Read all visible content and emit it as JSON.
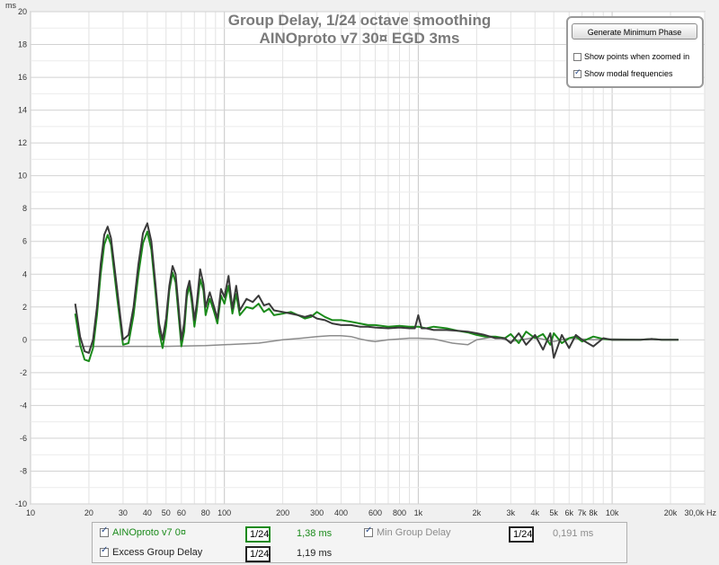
{
  "chart_data": {
    "type": "line",
    "title": "Group Delay, 1/24 octave smoothing",
    "subtitle": "AINOproto v7 30¤ EGD 3ms",
    "ylabel": "ms",
    "xlabel": "Hz",
    "xscale": "log",
    "xlim": [
      10,
      30000
    ],
    "ylim": [
      -10,
      20
    ],
    "yticks": [
      "-10",
      "-8",
      "-6",
      "-4",
      "-2",
      "0",
      "2",
      "4",
      "6",
      "8",
      "10",
      "12",
      "14",
      "16",
      "18",
      "20"
    ],
    "xticks": [
      {
        "v": 10,
        "label": "10"
      },
      {
        "v": 20,
        "label": "20"
      },
      {
        "v": 30,
        "label": "30"
      },
      {
        "v": 40,
        "label": "40"
      },
      {
        "v": 50,
        "label": "50"
      },
      {
        "v": 60,
        "label": "60"
      },
      {
        "v": 80,
        "label": "80"
      },
      {
        "v": 100,
        "label": "100"
      },
      {
        "v": 200,
        "label": "200"
      },
      {
        "v": 300,
        "label": "300"
      },
      {
        "v": 400,
        "label": "400"
      },
      {
        "v": 600,
        "label": "600"
      },
      {
        "v": 800,
        "label": "800"
      },
      {
        "v": 1000,
        "label": "1k"
      },
      {
        "v": 2000,
        "label": "2k"
      },
      {
        "v": 3000,
        "label": "3k"
      },
      {
        "v": 4000,
        "label": "4k"
      },
      {
        "v": 5000,
        "label": "5k"
      },
      {
        "v": 6000,
        "label": "6k"
      },
      {
        "v": 7000,
        "label": "7k"
      },
      {
        "v": 8000,
        "label": "8k"
      },
      {
        "v": 10000,
        "label": "10k"
      },
      {
        "v": 20000,
        "label": "20k"
      },
      {
        "v": 30000,
        "label": "30,0k Hz"
      }
    ],
    "grid": true,
    "series": [
      {
        "name": "AINOproto v7 0¤",
        "color": "#1a8a1a",
        "x": [
          17,
          18,
          19,
          20,
          21,
          22,
          23,
          24,
          25,
          26,
          28,
          30,
          32,
          34,
          36,
          38,
          40,
          42,
          44,
          46,
          48,
          50,
          52,
          54,
          56,
          58,
          60,
          62,
          64,
          66,
          68,
          70,
          72,
          75,
          78,
          80,
          84,
          88,
          92,
          96,
          100,
          105,
          110,
          115,
          120,
          130,
          140,
          150,
          160,
          170,
          180,
          200,
          220,
          240,
          260,
          280,
          300,
          330,
          360,
          400,
          450,
          500,
          550,
          600,
          700,
          800,
          900,
          1000,
          1100,
          1200,
          1400,
          1600,
          1800,
          2000,
          2200,
          2500,
          2800,
          3000,
          3300,
          3600,
          4000,
          4400,
          4800,
          5000,
          5500,
          6000,
          6500,
          7000,
          8000,
          9000,
          10000,
          12000,
          14000,
          16000,
          18000,
          20000,
          22000
        ],
        "y": [
          1.6,
          -0.3,
          -1.2,
          -1.3,
          -0.5,
          1.5,
          4.0,
          5.8,
          6.4,
          5.8,
          2.5,
          -0.3,
          -0.2,
          1.5,
          4.0,
          5.9,
          6.6,
          5.5,
          3.0,
          0.5,
          -0.5,
          0.8,
          3.0,
          4.1,
          3.5,
          1.5,
          -0.4,
          0.5,
          2.6,
          3.3,
          2.2,
          0.8,
          1.8,
          3.7,
          3.0,
          1.5,
          2.5,
          1.8,
          1.0,
          2.7,
          2.2,
          3.3,
          1.6,
          2.8,
          1.5,
          2.0,
          1.9,
          2.2,
          1.7,
          1.9,
          1.5,
          1.6,
          1.7,
          1.5,
          1.3,
          1.4,
          1.7,
          1.4,
          1.2,
          1.2,
          1.1,
          1.0,
          0.9,
          0.9,
          0.8,
          0.85,
          0.8,
          0.8,
          0.7,
          0.8,
          0.7,
          0.55,
          0.45,
          0.3,
          0.2,
          0.2,
          0.1,
          0.35,
          -0.2,
          0.5,
          0.1,
          0.35,
          -0.3,
          0.4,
          -0.2,
          0.1,
          0.2,
          -0.1,
          0.2,
          0.05,
          0.0,
          0.0,
          0.0,
          0.05,
          0.0,
          0.0,
          0.0
        ],
        "width": 2
      },
      {
        "name": "Min Group Delay",
        "color": "#8c8c8c",
        "x": [
          17,
          20,
          30,
          50,
          80,
          100,
          150,
          200,
          250,
          300,
          350,
          400,
          450,
          500,
          550,
          600,
          700,
          800,
          900,
          1000,
          1200,
          1500,
          1800,
          2000,
          2500,
          3000,
          4000,
          5000,
          6000,
          8000,
          10000,
          15000,
          22000
        ],
        "y": [
          -0.4,
          -0.4,
          -0.4,
          -0.4,
          -0.35,
          -0.3,
          -0.2,
          0.0,
          0.1,
          0.2,
          0.25,
          0.25,
          0.2,
          0.05,
          -0.05,
          -0.1,
          0.0,
          0.05,
          0.1,
          0.1,
          0.05,
          -0.2,
          -0.3,
          0.0,
          0.2,
          -0.1,
          0.15,
          -0.1,
          0.1,
          0.0,
          0.05,
          0.0,
          0.0
        ],
        "width": 1.5
      },
      {
        "name": "Excess Group Delay",
        "color": "#3a3a3a",
        "x": [
          17,
          18,
          19,
          20,
          21,
          22,
          23,
          24,
          25,
          26,
          28,
          30,
          32,
          34,
          36,
          38,
          40,
          42,
          44,
          46,
          48,
          50,
          52,
          54,
          56,
          58,
          60,
          62,
          64,
          66,
          68,
          70,
          72,
          75,
          78,
          80,
          84,
          88,
          92,
          96,
          100,
          105,
          110,
          115,
          120,
          130,
          140,
          150,
          160,
          170,
          180,
          200,
          220,
          240,
          260,
          280,
          300,
          330,
          360,
          400,
          450,
          500,
          550,
          600,
          700,
          800,
          900,
          960,
          1000,
          1040,
          1100,
          1200,
          1400,
          1600,
          1800,
          2000,
          2200,
          2500,
          2800,
          3000,
          3300,
          3600,
          4000,
          4400,
          4800,
          5000,
          5500,
          6000,
          6500,
          7000,
          8000,
          9000,
          10000,
          12000,
          14000,
          16000,
          18000,
          20000,
          22000
        ],
        "y": [
          2.2,
          0.2,
          -0.7,
          -0.8,
          0.0,
          2.0,
          4.6,
          6.4,
          6.9,
          6.2,
          3.0,
          0.0,
          0.3,
          2.0,
          4.6,
          6.5,
          7.1,
          6.0,
          3.5,
          1.0,
          0.0,
          1.3,
          3.3,
          4.5,
          4.0,
          2.0,
          0.0,
          1.0,
          3.0,
          3.6,
          2.6,
          1.2,
          2.2,
          4.3,
          3.4,
          2.0,
          2.9,
          2.1,
          1.3,
          3.1,
          2.6,
          3.9,
          1.9,
          3.3,
          1.8,
          2.5,
          2.3,
          2.7,
          2.1,
          2.2,
          1.8,
          1.7,
          1.6,
          1.5,
          1.4,
          1.5,
          1.3,
          1.2,
          1.0,
          0.9,
          0.9,
          0.8,
          0.8,
          0.75,
          0.7,
          0.75,
          0.7,
          0.7,
          1.5,
          0.7,
          0.7,
          0.6,
          0.6,
          0.55,
          0.5,
          0.4,
          0.3,
          0.1,
          0.1,
          -0.2,
          0.4,
          -0.3,
          0.3,
          -0.6,
          0.4,
          -1.1,
          0.3,
          -0.5,
          0.3,
          0.0,
          -0.4,
          0.1,
          0.0,
          0.0,
          0.0,
          0.05,
          0.0,
          0.0,
          0.0
        ],
        "width": 2
      }
    ]
  },
  "panel": {
    "button_label": "Generate Minimum Phase",
    "show_points_label": "Show points when zoomed in",
    "show_points_checked": false,
    "show_modal_label": "Show modal frequencies",
    "show_modal_checked": true
  },
  "legend": {
    "items": [
      {
        "label": "AINOproto v7 0¤",
        "smoothing": "1/24",
        "value": "1,38 ms",
        "color": "#1a8a1a"
      },
      {
        "label": "Min Group Delay",
        "smoothing": "1/24",
        "value": "0,191 ms",
        "color": "#8c8c8c"
      },
      {
        "label": "Excess Group Delay",
        "smoothing": "1/24",
        "value": "1,19 ms",
        "color": "#222222"
      }
    ]
  }
}
